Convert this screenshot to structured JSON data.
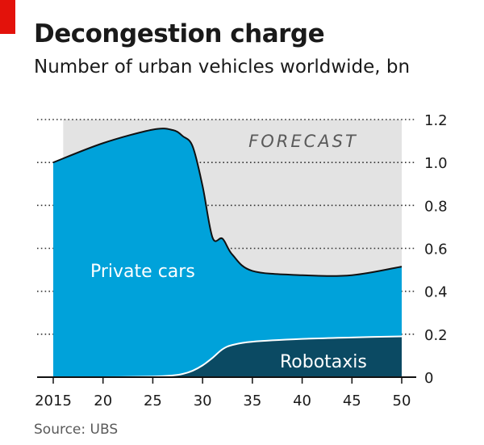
{
  "header": {
    "title": "Decongestion charge",
    "subtitle": "Number of urban vehicles worldwide, bn"
  },
  "footer": {
    "source": "Source: UBS"
  },
  "colors": {
    "private_cars": "#00a2da",
    "robotaxis": "#0b4a63",
    "forecast_bg": "#e3e3e3",
    "brand_red": "#e3120b"
  },
  "chart_data": {
    "type": "area",
    "stacked": true,
    "x_tick_labels": [
      "2015",
      "20",
      "25",
      "30",
      "35",
      "40",
      "45",
      "50"
    ],
    "x_ticks": [
      2015,
      2020,
      2025,
      2030,
      2035,
      2040,
      2045,
      2050
    ],
    "y_tick_labels": [
      "0",
      "0.2",
      "0.4",
      "0.6",
      "0.8",
      "1.0",
      "1.2"
    ],
    "y_ticks": [
      0,
      0.2,
      0.4,
      0.6,
      0.8,
      1.0,
      1.2
    ],
    "xlim": [
      2015,
      2050
    ],
    "ylim": [
      0,
      1.2
    ],
    "y_axis_side": "right",
    "grid": "dotted horizontal",
    "forecast": {
      "label": "FORECAST",
      "start": 2016,
      "end": 2050
    },
    "series": [
      {
        "name": "Robotaxis",
        "x": [
          2015,
          2020,
          2025,
          2027,
          2028,
          2029,
          2030,
          2031,
          2032,
          2033,
          2035,
          2040,
          2045,
          2050
        ],
        "values": [
          0,
          0,
          0.003,
          0.008,
          0.015,
          0.03,
          0.055,
          0.09,
          0.13,
          0.15,
          0.165,
          0.178,
          0.185,
          0.19
        ]
      },
      {
        "name": "Private cars",
        "x": [
          2015,
          2020,
          2025,
          2027,
          2028,
          2029,
          2030,
          2031,
          2032,
          2033,
          2035,
          2040,
          2045,
          2050
        ],
        "values": [
          1.0,
          1.09,
          1.15,
          1.143,
          1.108,
          1.045,
          0.835,
          0.56,
          0.515,
          0.42,
          0.33,
          0.297,
          0.29,
          0.325
        ]
      }
    ]
  }
}
